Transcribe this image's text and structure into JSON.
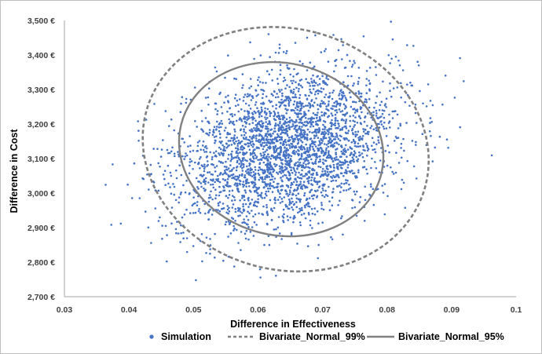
{
  "chart_data": {
    "type": "scatter",
    "title": "",
    "xlabel": "Difference in Effectiveness",
    "ylabel": "Difference in Cost",
    "xlim": [
      0.03,
      0.1
    ],
    "ylim": [
      2700,
      3500
    ],
    "x_ticks": [
      "0.03",
      "0.04",
      "0.05",
      "0.06",
      "0.07",
      "0.08",
      "0.09",
      "0.1"
    ],
    "y_ticks": [
      "2,700 €",
      "2,800 €",
      "2,900 €",
      "3,000 €",
      "3,100 €",
      "3,200 €",
      "3,300 €",
      "3,400 €",
      "3,500 €"
    ],
    "grid": false,
    "legend_position": "bottom",
    "series": [
      {
        "name": "Simulation",
        "kind": "scatter",
        "color": "#4472c4",
        "n_points": 3000,
        "mean": [
          0.0645,
          3128
        ],
        "std": [
          0.0085,
          115
        ],
        "correlation": 0.3
      },
      {
        "name": "Bivariate_Normal_99%",
        "kind": "ellipse",
        "color": "#808080",
        "dash": "dashed",
        "center": [
          0.0643,
          3127
        ],
        "x_range": [
          0.0412,
          0.0869
        ],
        "y_range": [
          2775,
          3480
        ]
      },
      {
        "name": "Bivariate_Normal_95%",
        "kind": "ellipse",
        "color": "#808080",
        "dash": "solid",
        "center": [
          0.0636,
          3127
        ],
        "x_range": [
          0.0472,
          0.0798
        ],
        "y_range": [
          2875,
          3378
        ]
      }
    ],
    "legend": [
      "Simulation",
      "Bivariate_Normal_99%",
      "Bivariate_Normal_95%"
    ]
  }
}
